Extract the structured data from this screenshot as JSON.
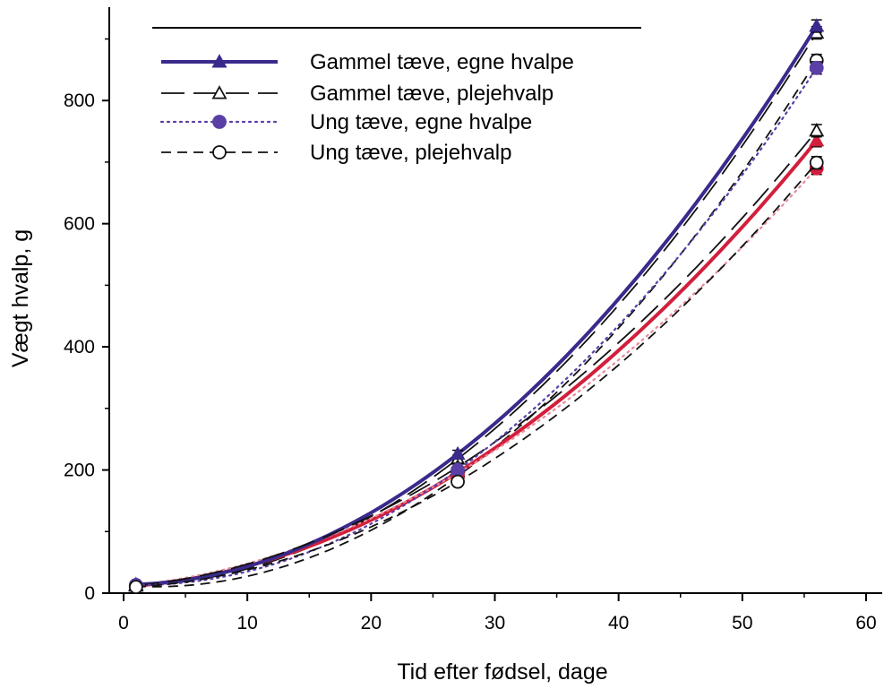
{
  "chart_data": {
    "type": "line",
    "xlabel": "Tid efter fødsel, dage",
    "ylabel": "Vægt hvalp, g",
    "xlim": [
      0,
      60
    ],
    "ylim": [
      0,
      940
    ],
    "xticks": [
      0,
      10,
      20,
      30,
      40,
      50,
      60
    ],
    "yticks": [
      0,
      200,
      400,
      600,
      800
    ],
    "grid": false,
    "legend_position": "top-left",
    "series": [
      {
        "name": "Gammel tæve, egne hvalpe",
        "color": "#3a2a8c",
        "style": "solid-thick",
        "marker": "filled-triangle",
        "x": [
          1,
          27,
          56
        ],
        "y": [
          14,
          226,
          921
        ],
        "err": [
          3,
          6,
          10
        ]
      },
      {
        "name": "Gammel tæve, plejehvalp",
        "color": "#111111",
        "style": "long-dash",
        "marker": "open-triangle",
        "x": [
          1,
          27,
          56
        ],
        "y": [
          12,
          205,
          751
        ],
        "err": [
          3,
          6,
          10
        ]
      },
      {
        "name": "Ung tæve, egne hvalpe",
        "color": "#5a3fa6",
        "style": "dotted",
        "marker": "filled-circle",
        "x": [
          1,
          27,
          56
        ],
        "y": [
          13,
          200,
          853
        ],
        "err": [
          3,
          6,
          10
        ]
      },
      {
        "name": "Ung tæve, plejehvalp",
        "color": "#111111",
        "style": "short-dash",
        "marker": "open-circle",
        "x": [
          1,
          27,
          56
        ],
        "y": [
          10,
          181,
          699
        ],
        "err": [
          3,
          6,
          10
        ]
      }
    ],
    "extra_lines": [
      {
        "color": "#111111",
        "style": "long-dash",
        "x": [
          1,
          27,
          56
        ],
        "y": [
          13,
          218,
          910
        ],
        "err": [
          3,
          6,
          10
        ],
        "marker": "open-triangle"
      },
      {
        "color": "#111111",
        "style": "short-dash",
        "x": [
          1,
          27,
          56
        ],
        "y": [
          11,
          190,
          865
        ],
        "err": [
          3,
          6,
          10
        ],
        "marker": "open-circle"
      },
      {
        "color": "#d21f3c",
        "style": "solid-thick",
        "x": [
          1,
          27,
          56
        ],
        "y": [
          12,
          196,
          735
        ],
        "err": [
          3,
          6,
          10
        ],
        "marker": "filled-triangle"
      },
      {
        "color": "#e88a9a",
        "style": "dotted",
        "x": [
          1,
          27,
          56
        ],
        "y": [
          13,
          195,
          690
        ],
        "err": [
          3,
          6,
          10
        ],
        "marker": "filled-circle"
      }
    ]
  }
}
